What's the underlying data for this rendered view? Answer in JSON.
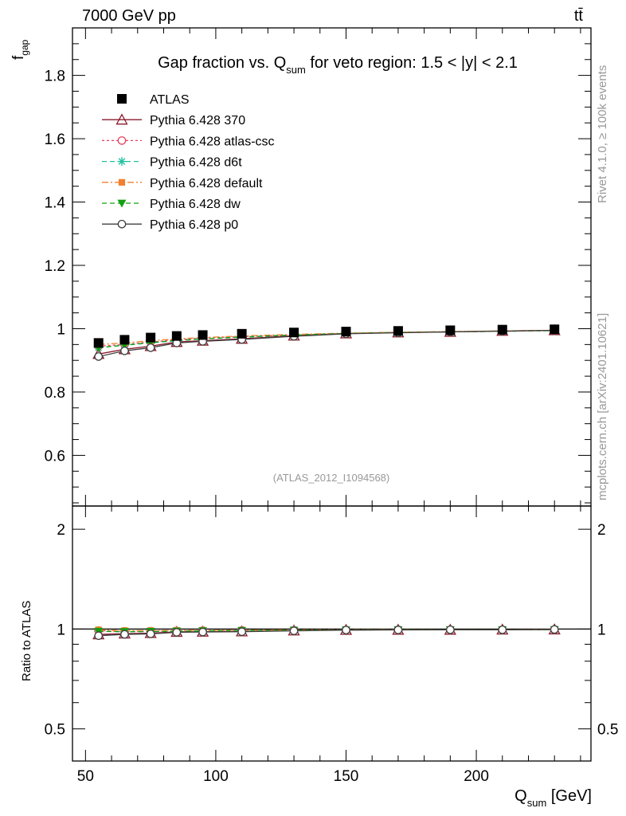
{
  "header": {
    "energy_label": "7000 GeV pp",
    "process_label": "tt̄"
  },
  "side": {
    "rivet_label": "Rivet 4.1.0, ≥ 100k events",
    "mcplots_label": "mcplots.cern.ch [arXiv:2401.10621]"
  },
  "colors": {
    "ATLAS": "#000000",
    "Pythia 6.428 370": "#8b1a2b",
    "Pythia 6.428 atlas-csc": "#e8405a",
    "Pythia 6.428 d6t": "#20c0a0",
    "Pythia 6.428 default": "#f08030",
    "Pythia 6.428 dw": "#10a010",
    "Pythia 6.428 p0": "#404040",
    "watermark": "#999999"
  },
  "chart_data": {
    "type": "scatter",
    "title_pre": "Gap fraction vs. Q",
    "title_sub": "sum",
    "title_post": " for veto region: 1.5 < |y| < 2.1",
    "analysis_id": "(ATLAS_2012_I1094568)",
    "ylabel_main": "f",
    "ylabel_main_sub": "gap",
    "ylabel_ratio": "Ratio to ATLAS",
    "xlabel": "Q",
    "xlabel_sub": "sum",
    "xlabel_unit": " [GeV]",
    "xlim": [
      45,
      244
    ],
    "ylim_main": [
      0.44,
      1.95
    ],
    "ylim_ratio": [
      0.4,
      2.35
    ],
    "x_ticks": [
      50,
      100,
      150,
      200
    ],
    "y_ticks_main": [
      0.6,
      0.8,
      1,
      1.2,
      1.4,
      1.6,
      1.8
    ],
    "y_ticks_ratio": [
      0.5,
      1,
      2
    ],
    "x": [
      55,
      65,
      75,
      85,
      95,
      110,
      130,
      150,
      170,
      190,
      210,
      230
    ],
    "series": [
      {
        "name": "ATLAS",
        "marker": "square",
        "line": "none",
        "values": [
          0.955,
          0.965,
          0.972,
          0.977,
          0.98,
          0.984,
          0.988,
          0.991,
          0.993,
          0.995,
          0.997,
          0.998
        ]
      },
      {
        "name": "Pythia 6.428 370",
        "marker": "triangle-open",
        "line": "solid",
        "values": [
          0.92,
          0.935,
          0.945,
          0.958,
          0.962,
          0.968,
          0.978,
          0.985,
          0.988,
          0.99,
          0.993,
          0.995
        ]
      },
      {
        "name": "Pythia 6.428 atlas-csc",
        "marker": "circle-open",
        "line": "dotted",
        "values": [
          0.945,
          0.95,
          0.958,
          0.965,
          0.97,
          0.975,
          0.98,
          0.985,
          0.988,
          0.99,
          0.992,
          0.994
        ]
      },
      {
        "name": "Pythia 6.428 d6t",
        "marker": "star",
        "line": "dashed",
        "values": [
          0.94,
          0.948,
          0.955,
          0.962,
          0.968,
          0.973,
          0.98,
          0.985,
          0.988,
          0.99,
          0.992,
          0.994
        ]
      },
      {
        "name": "Pythia 6.428 default",
        "marker": "square-small",
        "line": "dashdot",
        "values": [
          0.95,
          0.955,
          0.962,
          0.968,
          0.972,
          0.977,
          0.982,
          0.986,
          0.989,
          0.991,
          0.993,
          0.995
        ]
      },
      {
        "name": "Pythia 6.428 dw",
        "marker": "triangle-down",
        "line": "dashed",
        "values": [
          0.94,
          0.948,
          0.956,
          0.963,
          0.968,
          0.974,
          0.98,
          0.985,
          0.988,
          0.99,
          0.992,
          0.994
        ]
      },
      {
        "name": "Pythia 6.428 p0",
        "marker": "circle-open",
        "line": "solid",
        "values": [
          0.912,
          0.93,
          0.94,
          0.955,
          0.96,
          0.966,
          0.976,
          0.984,
          0.987,
          0.99,
          0.992,
          0.995
        ]
      }
    ]
  }
}
